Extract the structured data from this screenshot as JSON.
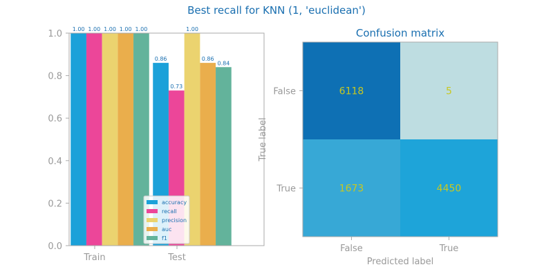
{
  "figure": {
    "suptitle": "Best recall for KNN (1, 'euclidean')"
  },
  "chart_data": [
    {
      "type": "bar",
      "title": "",
      "xlabel": "",
      "ylabel": "",
      "ylim": [
        0,
        1
      ],
      "yticks": [
        "0.0",
        "0.2",
        "0.4",
        "0.6",
        "0.8",
        "1.0"
      ],
      "categories": [
        "Train",
        "Test"
      ],
      "series": [
        {
          "name": "accuracy",
          "values": [
            1.0,
            0.86
          ],
          "labels": [
            "1.00",
            "0.86"
          ],
          "color": "#1ba1d9"
        },
        {
          "name": "recall",
          "values": [
            1.0,
            0.73
          ],
          "labels": [
            "1.00",
            "0.73"
          ],
          "color": "#ec4699"
        },
        {
          "name": "precision",
          "values": [
            1.0,
            1.0
          ],
          "labels": [
            "1.00",
            "1.00"
          ],
          "color": "#ebd36f"
        },
        {
          "name": "auc",
          "values": [
            1.0,
            0.86
          ],
          "labels": [
            "1.00",
            "0.86"
          ],
          "color": "#eaae4c"
        },
        {
          "name": "f1",
          "values": [
            1.0,
            0.84
          ],
          "labels": [
            "1.00",
            "0.84"
          ],
          "color": "#63b39b"
        }
      ],
      "legend": "lower-right",
      "grid": false
    },
    {
      "type": "heatmap",
      "title": "Confusion matrix",
      "xlabel": "Predicted label",
      "ylabel": "True label",
      "x_categories": [
        "False",
        "True"
      ],
      "y_categories": [
        "False",
        "True"
      ],
      "values": [
        [
          6118,
          5
        ],
        [
          1673,
          4450
        ]
      ],
      "cell_labels": [
        [
          "6118",
          "5"
        ],
        [
          "1673",
          "4450"
        ]
      ],
      "colors": [
        [
          "#0e70b4",
          "#bedde1"
        ],
        [
          "#37a8d6",
          "#1ea4d9"
        ]
      ]
    }
  ]
}
